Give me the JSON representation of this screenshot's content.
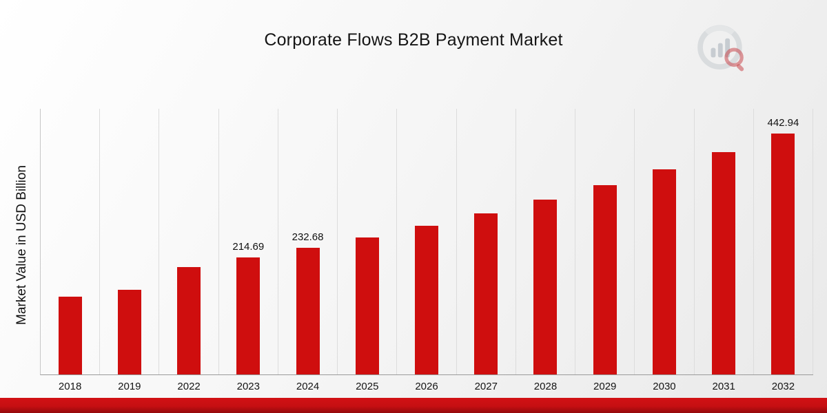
{
  "title": "Corporate Flows B2B Payment Market",
  "ylabel": "Market Value in USD Billion",
  "colors": {
    "bar": "#cf0e0e",
    "grid": "#dcdcdc",
    "axis": "#9a9a9a",
    "bottom_bar_top": "#d21114",
    "bottom_bar_bottom": "#93090c",
    "logo_gray": "#d2d6da",
    "logo_red": "#c5373d"
  },
  "icons": {
    "brand_logo": "bar-chart-magnifier-logo"
  },
  "chart_data": {
    "type": "bar",
    "title": "Corporate Flows B2B Payment Market",
    "xlabel": "",
    "ylabel": "Market Value in USD Billion",
    "categories": [
      "2018",
      "2019",
      "2022",
      "2023",
      "2024",
      "2025",
      "2026",
      "2027",
      "2028",
      "2029",
      "2030",
      "2031",
      "2032"
    ],
    "values": [
      143.6,
      155.7,
      198.1,
      214.69,
      232.68,
      252.2,
      273.3,
      296.2,
      321.1,
      348.0,
      377.1,
      408.7,
      442.94
    ],
    "data_labels": {
      "2023": "214.69",
      "2024": "232.68",
      "2032": "442.94"
    },
    "ylim": [
      0,
      490
    ],
    "grid": "vertical-only",
    "legend": "none"
  }
}
